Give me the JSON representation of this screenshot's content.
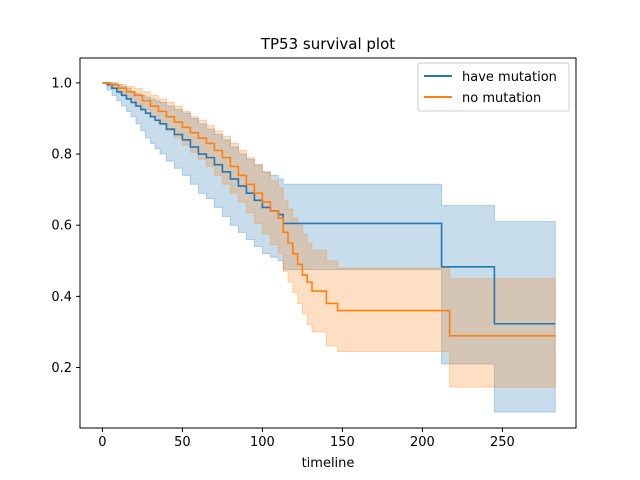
{
  "chart_data": {
    "type": "line",
    "title": "TP53 survival plot",
    "xlabel": "timeline",
    "ylabel": "",
    "xlim": [
      -14,
      296
    ],
    "ylim": [
      0.03,
      1.07
    ],
    "xticks": [
      0,
      50,
      100,
      150,
      200,
      250
    ],
    "yticks": [
      0.2,
      0.4,
      0.6,
      0.8,
      1.0
    ],
    "xtick_labels": [
      "0",
      "50",
      "100",
      "150",
      "200",
      "250"
    ],
    "ytick_labels": [
      "0.2",
      "0.4",
      "0.6",
      "0.8",
      "1.0"
    ],
    "grid": false,
    "legend_position": "top-right",
    "series": [
      {
        "name": "have mutation",
        "color": "#1f77b4",
        "band_color": "#1f77b4",
        "x": [
          0,
          3,
          6,
          9,
          12,
          15,
          18,
          21,
          24,
          27,
          30,
          33,
          36,
          40,
          45,
          50,
          55,
          60,
          65,
          70,
          75,
          80,
          85,
          90,
          95,
          100,
          105,
          110,
          113,
          212,
          245,
          283
        ],
        "y": [
          1.0,
          0.995,
          0.985,
          0.975,
          0.965,
          0.955,
          0.945,
          0.935,
          0.925,
          0.915,
          0.905,
          0.895,
          0.885,
          0.87,
          0.855,
          0.84,
          0.82,
          0.8,
          0.79,
          0.77,
          0.75,
          0.73,
          0.71,
          0.69,
          0.67,
          0.65,
          0.64,
          0.63,
          0.605,
          0.483,
          0.323,
          0.323
        ],
        "lower": [
          1.0,
          0.98,
          0.965,
          0.95,
          0.935,
          0.92,
          0.905,
          0.885,
          0.865,
          0.845,
          0.83,
          0.815,
          0.8,
          0.78,
          0.76,
          0.74,
          0.715,
          0.69,
          0.675,
          0.65,
          0.625,
          0.6,
          0.58,
          0.56,
          0.54,
          0.52,
          0.51,
          0.5,
          0.475,
          0.21,
          0.075,
          0.075
        ],
        "upper": [
          1.0,
          1.0,
          1.0,
          0.995,
          0.99,
          0.985,
          0.975,
          0.97,
          0.965,
          0.96,
          0.955,
          0.95,
          0.945,
          0.935,
          0.925,
          0.915,
          0.9,
          0.885,
          0.87,
          0.855,
          0.84,
          0.82,
          0.8,
          0.785,
          0.77,
          0.75,
          0.74,
          0.73,
          0.715,
          0.655,
          0.61,
          0.61
        ]
      },
      {
        "name": "no mutation",
        "color": "#ff7f0e",
        "band_color": "#ff7f0e",
        "x": [
          0,
          5,
          10,
          15,
          20,
          25,
          30,
          35,
          40,
          45,
          50,
          55,
          60,
          65,
          70,
          75,
          80,
          85,
          90,
          95,
          100,
          105,
          110,
          113,
          116,
          119,
          122,
          125,
          128,
          131,
          140,
          147,
          217,
          283
        ],
        "y": [
          1.0,
          0.995,
          0.985,
          0.975,
          0.965,
          0.95,
          0.935,
          0.92,
          0.905,
          0.89,
          0.875,
          0.86,
          0.845,
          0.83,
          0.81,
          0.79,
          0.765,
          0.74,
          0.715,
          0.69,
          0.665,
          0.64,
          0.62,
          0.58,
          0.55,
          0.52,
          0.49,
          0.46,
          0.44,
          0.415,
          0.38,
          0.36,
          0.289,
          0.289
        ],
        "lower": [
          1.0,
          0.985,
          0.97,
          0.955,
          0.94,
          0.925,
          0.905,
          0.885,
          0.865,
          0.845,
          0.825,
          0.805,
          0.785,
          0.765,
          0.74,
          0.715,
          0.69,
          0.665,
          0.635,
          0.605,
          0.575,
          0.545,
          0.52,
          0.47,
          0.44,
          0.41,
          0.38,
          0.35,
          0.32,
          0.3,
          0.26,
          0.245,
          0.145,
          0.145
        ],
        "upper": [
          1.0,
          1.0,
          0.995,
          0.99,
          0.985,
          0.975,
          0.965,
          0.955,
          0.945,
          0.935,
          0.92,
          0.905,
          0.895,
          0.88,
          0.865,
          0.85,
          0.83,
          0.81,
          0.79,
          0.77,
          0.75,
          0.725,
          0.705,
          0.67,
          0.645,
          0.62,
          0.6,
          0.575,
          0.55,
          0.53,
          0.5,
          0.48,
          0.45,
          0.45
        ]
      }
    ]
  }
}
